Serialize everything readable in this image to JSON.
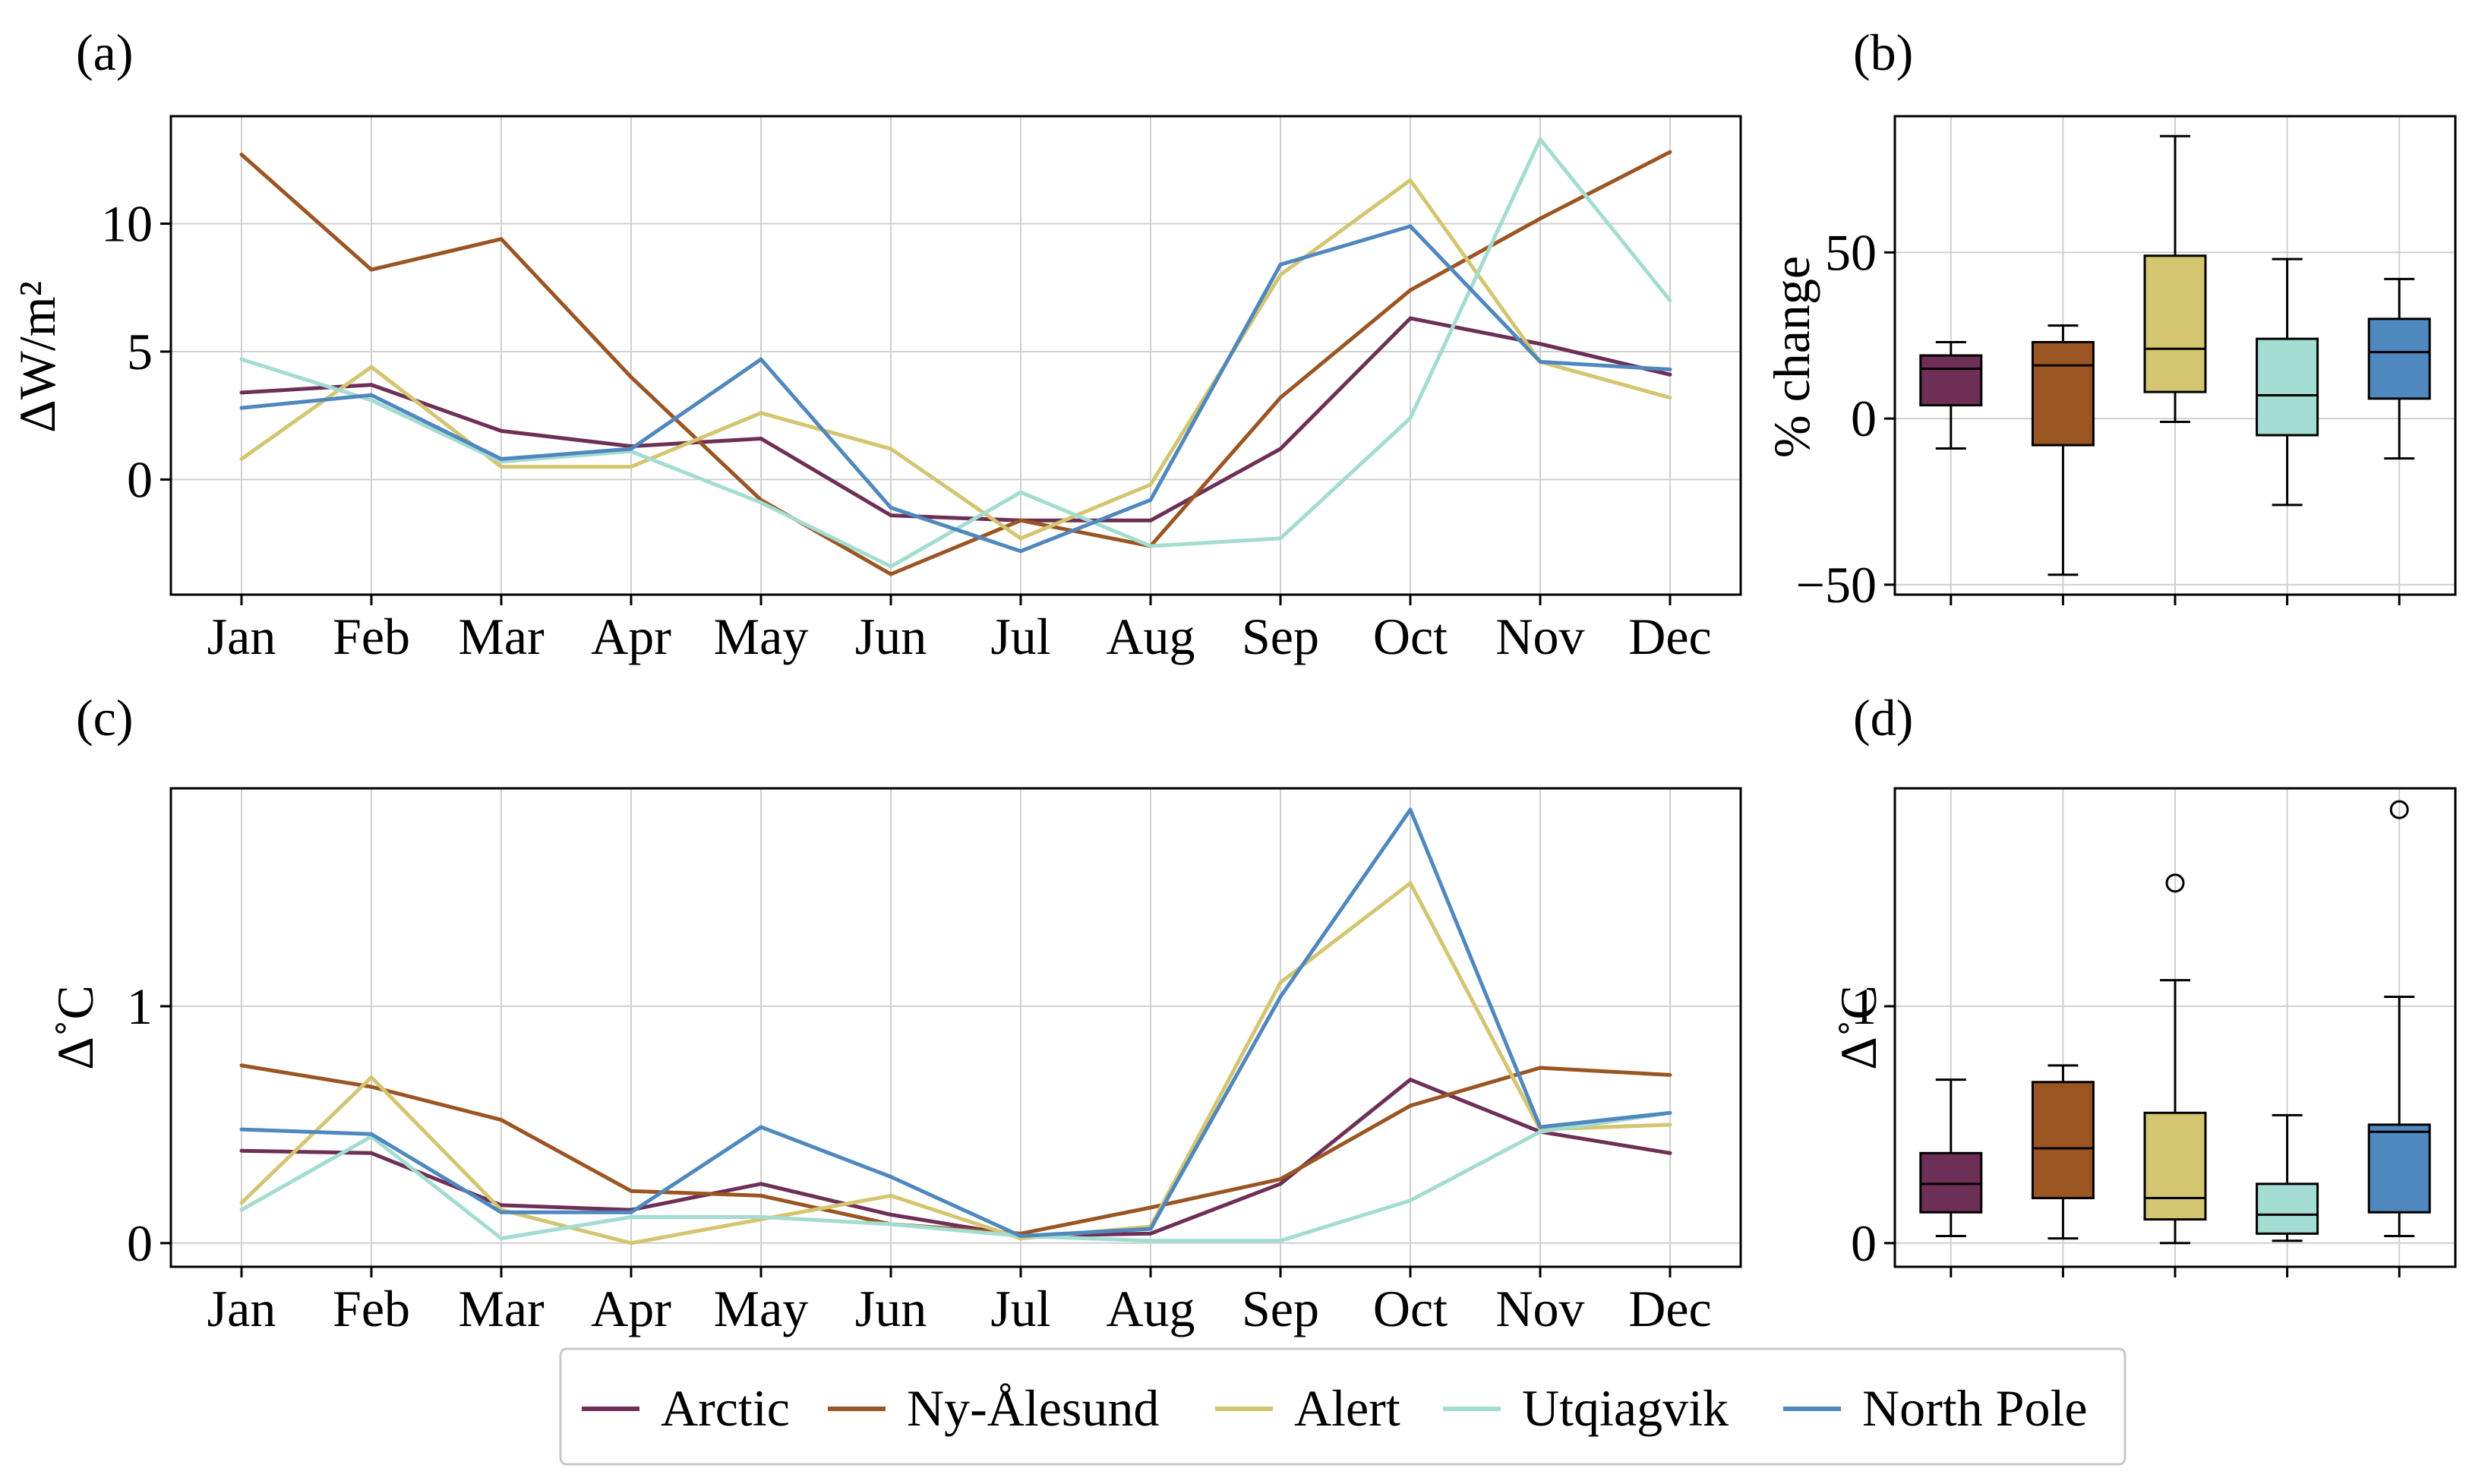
{
  "months": [
    "Jan",
    "Feb",
    "Mar",
    "Apr",
    "May",
    "Jun",
    "Jul",
    "Aug",
    "Sep",
    "Oct",
    "Nov",
    "Dec"
  ],
  "series_names": [
    "Arctic",
    "Ny-Ålesund",
    "Alert",
    "Utqiagvik",
    "North Pole"
  ],
  "colors": [
    "#6d2f56",
    "#9b5523",
    "#d4c570",
    "#a3dcd0",
    "#4f87bf"
  ],
  "chart_data": [
    {
      "panel": "(a)",
      "type": "line",
      "ylabel": "ΔW/m²",
      "ylim": [
        -4.5,
        14.2
      ],
      "yticks": [
        0,
        5,
        10
      ],
      "grid": true,
      "x": [
        "Jan",
        "Feb",
        "Mar",
        "Apr",
        "May",
        "Jun",
        "Jul",
        "Aug",
        "Sep",
        "Oct",
        "Nov",
        "Dec"
      ],
      "series": [
        {
          "name": "Arctic",
          "values": [
            3.4,
            3.7,
            1.9,
            1.3,
            1.6,
            -1.4,
            -1.6,
            -1.6,
            1.2,
            6.3,
            5.3,
            4.1
          ]
        },
        {
          "name": "Ny-Ålesund",
          "values": [
            12.7,
            8.2,
            9.4,
            4.0,
            -0.8,
            -3.7,
            -1.6,
            -2.6,
            3.2,
            7.4,
            10.2,
            12.8
          ]
        },
        {
          "name": "Alert",
          "values": [
            0.8,
            4.4,
            0.5,
            0.5,
            2.6,
            1.2,
            -2.3,
            -0.2,
            8.0,
            11.7,
            4.6,
            3.2
          ]
        },
        {
          "name": "Utqiagvik",
          "values": [
            4.7,
            3.1,
            0.7,
            1.1,
            -0.9,
            -3.4,
            -0.5,
            -2.6,
            -2.3,
            2.4,
            13.3,
            7.0
          ]
        },
        {
          "name": "North Pole",
          "values": [
            2.8,
            3.3,
            0.8,
            1.2,
            4.7,
            -1.1,
            -2.8,
            -0.8,
            8.4,
            9.9,
            4.6,
            4.3
          ]
        }
      ]
    },
    {
      "panel": "(b)",
      "type": "box",
      "ylabel": "% change",
      "ylim": [
        -53,
        91
      ],
      "yticks": [
        -50,
        0,
        50
      ],
      "grid": true,
      "series": [
        {
          "name": "Arctic",
          "whislo": -9,
          "q1": 4,
          "med": 15,
          "q3": 19,
          "whishi": 23,
          "fliers": []
        },
        {
          "name": "Ny-Ålesund",
          "whislo": -47,
          "q1": -8,
          "med": 16,
          "q3": 23,
          "whishi": 28,
          "fliers": []
        },
        {
          "name": "Alert",
          "whislo": -1,
          "q1": 8,
          "med": 21,
          "q3": 49,
          "whishi": 85,
          "fliers": []
        },
        {
          "name": "Utqiagvik",
          "whislo": -26,
          "q1": -5,
          "med": 7,
          "q3": 24,
          "whishi": 48,
          "fliers": []
        },
        {
          "name": "North Pole",
          "whislo": -12,
          "q1": 6,
          "med": 20,
          "q3": 30,
          "whishi": 42,
          "fliers": []
        }
      ]
    },
    {
      "panel": "(c)",
      "type": "line",
      "ylabel": "Δ˚C",
      "ylim": [
        -0.1,
        1.92
      ],
      "yticks": [
        0,
        1
      ],
      "grid": true,
      "x": [
        "Jan",
        "Feb",
        "Mar",
        "Apr",
        "May",
        "Jun",
        "Jul",
        "Aug",
        "Sep",
        "Oct",
        "Nov",
        "Dec"
      ],
      "series": [
        {
          "name": "Arctic",
          "values": [
            0.39,
            0.38,
            0.16,
            0.14,
            0.25,
            0.12,
            0.03,
            0.04,
            0.25,
            0.69,
            0.47,
            0.38
          ]
        },
        {
          "name": "Ny-Ålesund",
          "values": [
            0.75,
            0.66,
            0.52,
            0.22,
            0.2,
            0.08,
            0.04,
            0.15,
            0.27,
            0.58,
            0.74,
            0.71
          ]
        },
        {
          "name": "Alert",
          "values": [
            0.17,
            0.7,
            0.14,
            0.0,
            0.1,
            0.2,
            0.02,
            0.07,
            1.1,
            1.52,
            0.48,
            0.5
          ]
        },
        {
          "name": "Utqiagvik",
          "values": [
            0.14,
            0.45,
            0.02,
            0.11,
            0.11,
            0.08,
            0.03,
            0.01,
            0.01,
            0.18,
            0.47,
            0.55
          ]
        },
        {
          "name": "North Pole",
          "values": [
            0.48,
            0.46,
            0.13,
            0.13,
            0.49,
            0.28,
            0.03,
            0.06,
            1.04,
            1.83,
            0.49,
            0.55
          ]
        }
      ]
    },
    {
      "panel": "(d)",
      "type": "box",
      "ylabel": "Δ˚C",
      "ylim": [
        -0.1,
        1.92
      ],
      "yticks": [
        0,
        1
      ],
      "grid": true,
      "series": [
        {
          "name": "Arctic",
          "whislo": 0.03,
          "q1": 0.13,
          "med": 0.25,
          "q3": 0.38,
          "whishi": 0.69,
          "fliers": []
        },
        {
          "name": "Ny-Ålesund",
          "whislo": 0.02,
          "q1": 0.19,
          "med": 0.4,
          "q3": 0.68,
          "whishi": 0.75,
          "fliers": []
        },
        {
          "name": "Alert",
          "whislo": 0.0,
          "q1": 0.1,
          "med": 0.19,
          "q3": 0.55,
          "whishi": 1.11,
          "fliers": [
            1.52
          ]
        },
        {
          "name": "Utqiagvik",
          "whislo": 0.01,
          "q1": 0.04,
          "med": 0.12,
          "q3": 0.25,
          "whishi": 0.54,
          "fliers": []
        },
        {
          "name": "North Pole",
          "whislo": 0.03,
          "q1": 0.13,
          "med": 0.47,
          "q3": 0.5,
          "whishi": 1.04,
          "fliers": [
            1.83
          ]
        }
      ]
    }
  ]
}
